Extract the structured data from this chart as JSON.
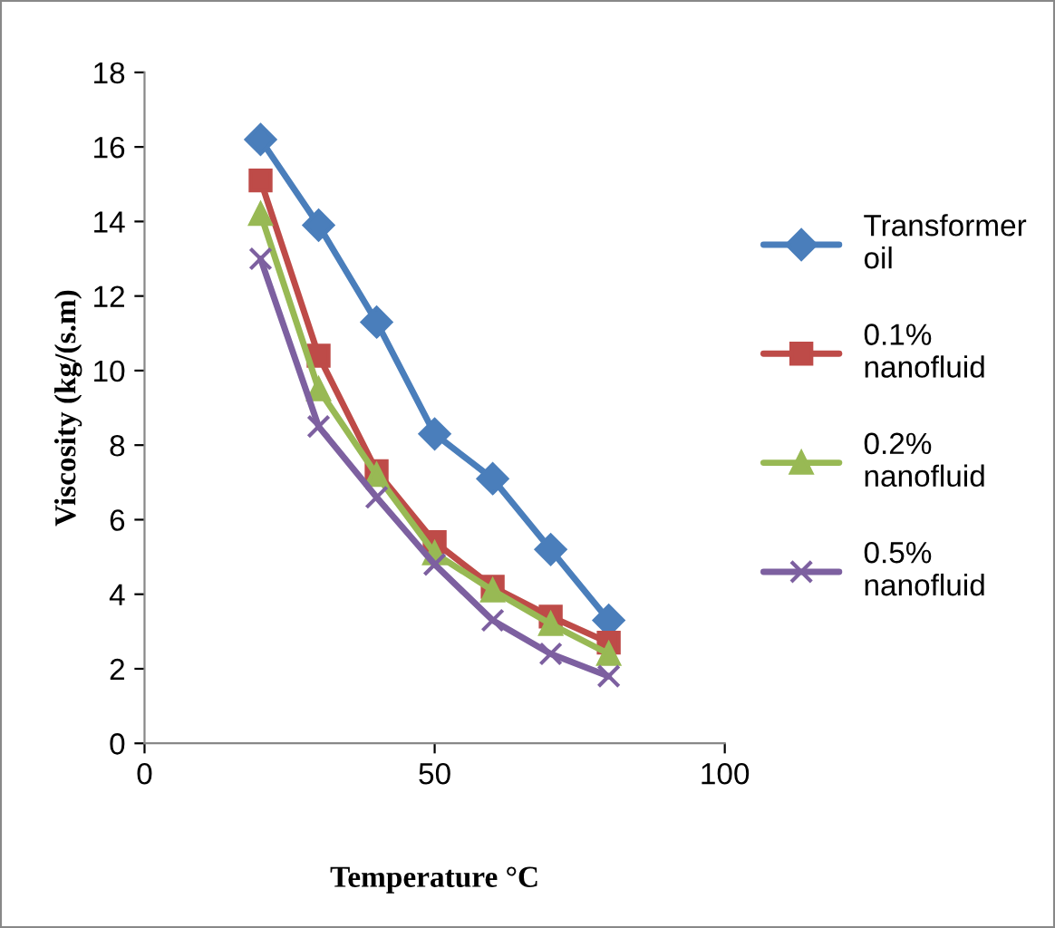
{
  "chart_data": {
    "type": "line",
    "xlabel": "Temperature °C",
    "ylabel": "Viscosity (kg/(s.m)",
    "x": [
      20,
      30,
      40,
      50,
      60,
      70,
      80
    ],
    "series": [
      {
        "name": "Transformer oil",
        "color": "#4a7ebb",
        "marker": "diamond",
        "values": [
          16.2,
          13.9,
          11.3,
          8.3,
          7.1,
          5.2,
          3.3
        ]
      },
      {
        "name": "0.1% nanofluid",
        "color": "#be4b48",
        "marker": "square",
        "values": [
          15.1,
          10.4,
          7.3,
          5.4,
          4.2,
          3.4,
          2.7
        ]
      },
      {
        "name": "0.2% nanofluid",
        "color": "#98b954",
        "marker": "triangle",
        "values": [
          14.2,
          9.5,
          7.2,
          5.1,
          4.1,
          3.2,
          2.4
        ]
      },
      {
        "name": "0.5% nanofluid",
        "color": "#7d60a0",
        "marker": "cross",
        "values": [
          13.0,
          8.5,
          6.6,
          4.8,
          3.3,
          2.4,
          1.8
        ]
      }
    ],
    "xlim": [
      0,
      100
    ],
    "xticks": [
      0,
      50,
      100
    ],
    "ylim": [
      0,
      18
    ],
    "yticks": [
      0,
      2,
      4,
      6,
      8,
      10,
      12,
      14,
      16,
      18
    ],
    "grid": false,
    "legend": "right",
    "line_style": "solid"
  }
}
